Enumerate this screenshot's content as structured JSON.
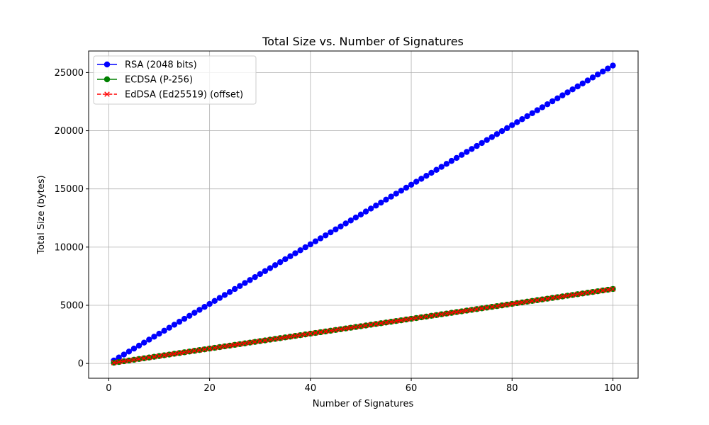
{
  "chart_data": {
    "type": "line",
    "title": "Total Size vs. Number of Signatures",
    "xlabel": "Number of Signatures",
    "ylabel": "Total Size (bytes)",
    "xlim": [
      -4,
      105
    ],
    "ylim": [
      -1270,
      26850
    ],
    "xticks": [
      0,
      20,
      40,
      60,
      80,
      100
    ],
    "yticks": [
      0,
      5000,
      10000,
      15000,
      20000,
      25000
    ],
    "grid": true,
    "legend_position": "top-left",
    "x": {
      "start": 1,
      "end": 100,
      "step": 1
    },
    "series": [
      {
        "name": "RSA (2048 bits)",
        "color": "#0000ff",
        "marker": "circle",
        "linestyle": "solid",
        "bytes_per_signature": 256
      },
      {
        "name": "ECDSA (P-256)",
        "color": "#008000",
        "marker": "circle",
        "linestyle": "solid",
        "bytes_per_signature": 64
      },
      {
        "name": "EdDSA (Ed25519) (offset)",
        "color": "#ff0000",
        "marker": "x",
        "linestyle": "dashed",
        "bytes_per_signature": 64
      }
    ]
  }
}
